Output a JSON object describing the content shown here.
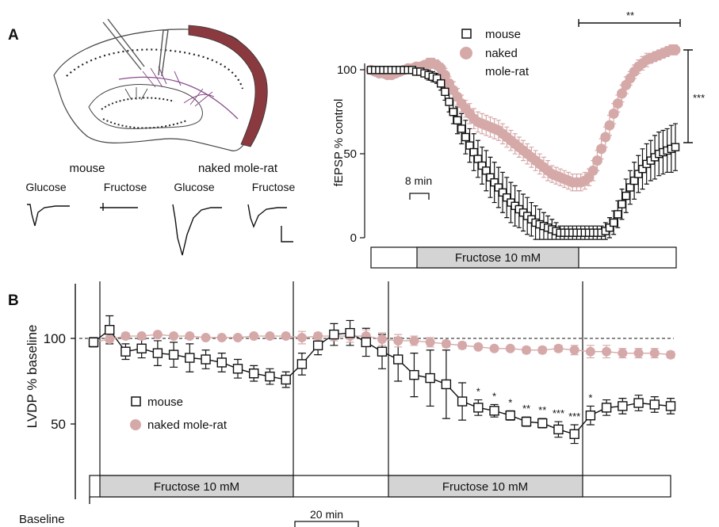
{
  "panel_a": {
    "label": "A",
    "traces": {
      "group_mouse": "mouse",
      "group_nmr": "naked mole-rat",
      "cond1": "Glucose",
      "cond2": "Fructose",
      "cond3": "Glucose",
      "cond4": "Fructose"
    }
  },
  "panel_b": {
    "label": "B",
    "baseline_label": "Baseline",
    "scalebar_label": "20 min"
  },
  "colors": {
    "mouse": "#111111",
    "nmr": "#d6a9a9",
    "bar_fill": "#d4d4d4",
    "slice_red": "#8a3a3f",
    "slice_purple": "#8a4d8c"
  },
  "chart_data": [
    {
      "type": "scatter",
      "ylabel": "fEPSP % control",
      "xlabel": "",
      "ylim": [
        0,
        120
      ],
      "yticks": [
        "0",
        "50",
        "100"
      ],
      "scalebar_label": "8 min",
      "stimulus_label": "Fructose 10 mM",
      "significance": {
        "horizontal": "**",
        "vertical": "***"
      },
      "legend": {
        "placement": "top",
        "entries": [
          "mouse",
          "naked\nmole-rat"
        ]
      },
      "series": [
        {
          "name": "mouse",
          "marker": "open-square",
          "values": [
            100,
            100,
            100,
            100,
            100,
            100,
            100,
            100,
            100,
            100,
            100,
            99,
            99,
            98,
            97,
            96,
            95,
            92,
            87,
            81,
            75,
            70,
            65,
            60,
            55,
            51,
            47,
            43,
            40,
            36,
            33,
            30,
            27,
            24,
            21,
            19,
            17,
            15,
            13,
            11,
            9,
            8,
            7,
            6,
            5,
            4,
            3,
            3,
            3,
            3,
            3,
            3,
            3,
            3,
            3,
            3,
            3,
            4,
            6,
            9,
            14,
            20,
            25,
            30,
            34,
            38,
            41,
            44,
            46,
            48,
            50,
            51,
            52,
            53,
            54
          ],
          "err": [
            2,
            2,
            2,
            2,
            2,
            2,
            2,
            2,
            2,
            2,
            2,
            2,
            2,
            2,
            3,
            3,
            3,
            4,
            5,
            6,
            7,
            8,
            9,
            10,
            10,
            11,
            11,
            11,
            12,
            12,
            12,
            12,
            12,
            12,
            12,
            12,
            11,
            11,
            11,
            10,
            10,
            9,
            8,
            7,
            6,
            5,
            4,
            4,
            4,
            4,
            4,
            4,
            4,
            4,
            4,
            4,
            4,
            5,
            6,
            7,
            8,
            9,
            10,
            10,
            11,
            11,
            12,
            12,
            12,
            13,
            13,
            13,
            13,
            14,
            14
          ]
        },
        {
          "name": "naked mole-rat",
          "marker": "filled-circle",
          "values": [
            100,
            99,
            98,
            98,
            97,
            97,
            98,
            99,
            100,
            101,
            101,
            102,
            102,
            103,
            104,
            104,
            103,
            101,
            97,
            92,
            88,
            84,
            80,
            77,
            74,
            71,
            69,
            68,
            67,
            66,
            65,
            64,
            62,
            60,
            58,
            56,
            54,
            52,
            50,
            48,
            46,
            44,
            42,
            40,
            38,
            37,
            36,
            35,
            34,
            33,
            33,
            33,
            34,
            36,
            40,
            46,
            53,
            60,
            67,
            74,
            80,
            86,
            91,
            95,
            99,
            102,
            104,
            106,
            107,
            108,
            109,
            110,
            111,
            112,
            112
          ],
          "err": [
            2,
            2,
            2,
            2,
            2,
            2,
            2,
            2,
            2,
            2,
            2,
            2,
            2,
            2,
            3,
            3,
            3,
            3,
            4,
            4,
            5,
            5,
            5,
            5,
            6,
            6,
            6,
            6,
            6,
            6,
            6,
            6,
            6,
            6,
            6,
            6,
            6,
            6,
            6,
            6,
            6,
            6,
            6,
            6,
            5,
            5,
            5,
            5,
            5,
            5,
            5,
            5,
            5,
            5,
            6,
            6,
            6,
            6,
            6,
            6,
            5,
            5,
            5,
            4,
            4,
            4,
            4,
            4,
            3,
            3,
            3,
            3,
            3,
            3,
            3
          ]
        }
      ]
    },
    {
      "type": "line",
      "ylabel": "LVDP % baseline",
      "xlabel": "",
      "ylim": [
        20,
        130
      ],
      "yticks": [
        "50",
        "100"
      ],
      "reference_line": 100,
      "stimulus_labels": [
        "Fructose 10 mM",
        "Fructose 10 mM"
      ],
      "legend": {
        "placement": "middle-left",
        "entries": [
          "mouse",
          "naked mole-rat"
        ]
      },
      "series": [
        {
          "name": "mouse",
          "marker": "open-square",
          "values": [
            100,
            108,
            94,
            96,
            93,
            92,
            90,
            89,
            87,
            83,
            80,
            78,
            76,
            86,
            98,
            105,
            106,
            100,
            94,
            89,
            79,
            77,
            73,
            62,
            58,
            56,
            53,
            49,
            48,
            44,
            41,
            53,
            58,
            59,
            61,
            60,
            59
          ],
          "err": [
            3,
            9,
            5,
            6,
            8,
            8,
            9,
            6,
            6,
            6,
            5,
            5,
            5,
            7,
            6,
            7,
            8,
            9,
            11,
            14,
            14,
            18,
            22,
            12,
            5,
            4,
            3,
            3,
            3,
            5,
            6,
            6,
            5,
            5,
            5,
            5,
            5
          ],
          "significance": [
            "",
            "",
            "",
            "",
            "",
            "",
            "",
            "",
            "",
            "",
            "",
            "",
            "",
            "",
            "",
            "",
            "",
            "",
            "",
            "",
            "",
            "",
            "",
            "",
            "*",
            "*",
            "*",
            "**",
            "**",
            "***",
            "***",
            "*",
            "",
            "",
            "",
            "",
            ""
          ]
        },
        {
          "name": "naked mole-rat",
          "marker": "filled-circle",
          "values": [
            100,
            102,
            104,
            104,
            105,
            104,
            104,
            103,
            103,
            103,
            104,
            104,
            104,
            103,
            104,
            104,
            104,
            104,
            102,
            101,
            101,
            100,
            99,
            98,
            97,
            96,
            96,
            95,
            95,
            96,
            95,
            94,
            94,
            93,
            93,
            93,
            92
          ],
          "err": [
            1,
            2,
            2,
            1,
            1,
            1,
            1,
            1,
            1,
            1,
            1,
            1,
            1,
            4,
            2,
            3,
            4,
            4,
            4,
            4,
            3,
            3,
            2,
            2,
            1,
            1,
            1,
            2,
            2,
            2,
            3,
            4,
            4,
            3,
            3,
            3,
            2
          ]
        }
      ]
    }
  ]
}
